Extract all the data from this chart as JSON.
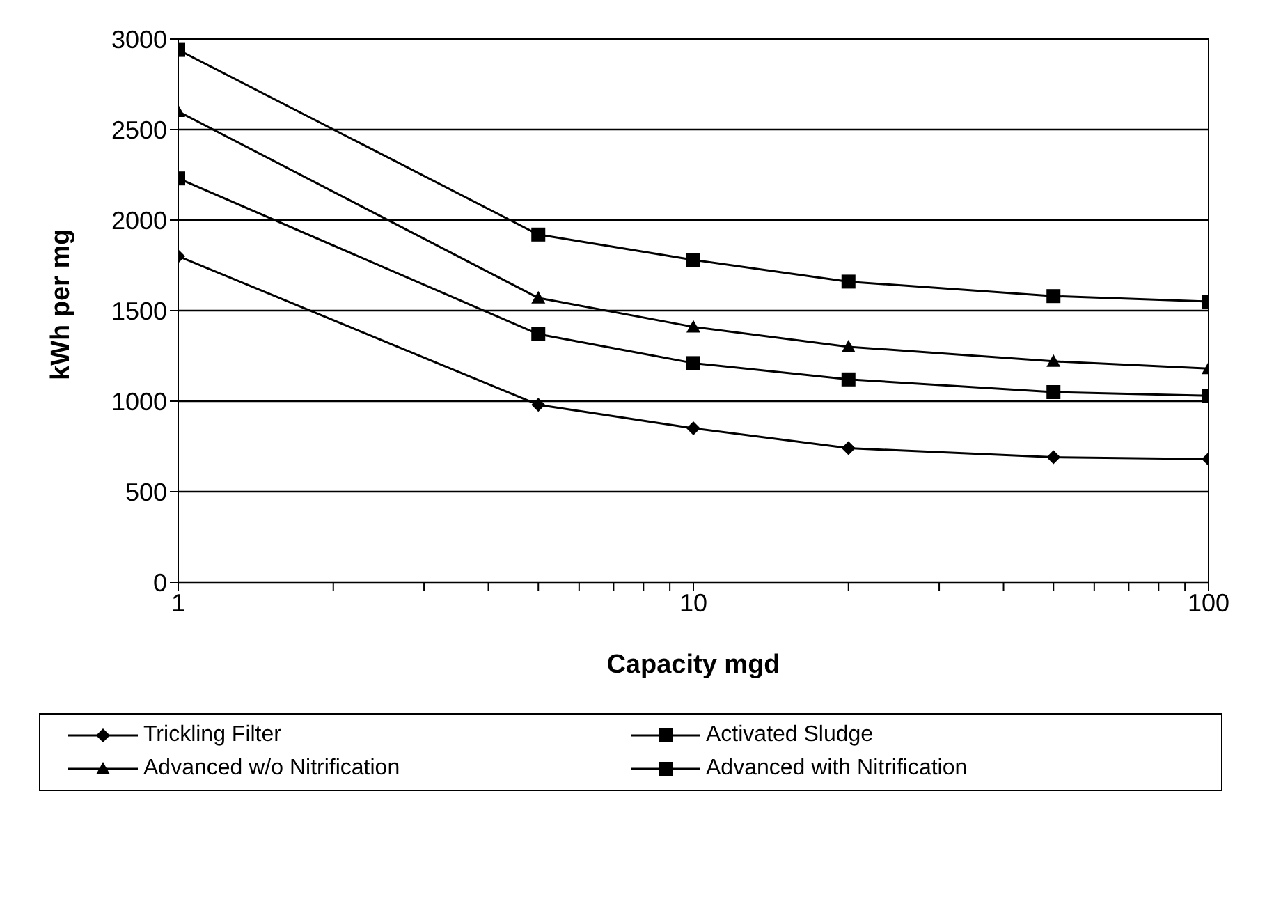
{
  "chart_data": {
    "type": "line",
    "xlabel": "Capacity mgd",
    "ylabel": "kWh per mg",
    "log": "x",
    "x": [
      1,
      5,
      10,
      20,
      50,
      100
    ],
    "series": [
      {
        "name": "Trickling Filter",
        "color": "#000000",
        "marker": "diamond",
        "values": [
          1800,
          980,
          850,
          740,
          690,
          680
        ]
      },
      {
        "name": "Activated Sludge",
        "color": "#000000",
        "marker": "square",
        "values": [
          2230,
          1370,
          1210,
          1120,
          1050,
          1030
        ]
      },
      {
        "name": "Advanced w/o Nitrification",
        "color": "#000000",
        "marker": "triangle",
        "values": [
          2600,
          1570,
          1410,
          1300,
          1220,
          1180
        ]
      },
      {
        "name": "Advanced with Nitrification",
        "color": "#000000",
        "marker": "square",
        "values": [
          2940,
          1920,
          1780,
          1660,
          1580,
          1550
        ]
      }
    ],
    "xlim": [
      1,
      100
    ],
    "xticks": [
      1,
      {
        "value": 2,
        "label": null
      },
      {
        "value": 3,
        "label": null
      },
      {
        "value": 4,
        "label": null
      },
      {
        "value": 5,
        "label": null
      },
      {
        "value": 6,
        "label": null
      },
      {
        "value": 7,
        "label": null
      },
      {
        "value": 8,
        "label": null
      },
      {
        "value": 9,
        "label": null
      },
      10,
      {
        "value": 20,
        "label": null
      },
      {
        "value": 30,
        "label": null
      },
      {
        "value": 40,
        "label": null
      },
      {
        "value": 50,
        "label": null
      },
      {
        "value": 60,
        "label": null
      },
      {
        "value": 70,
        "label": null
      },
      {
        "value": 80,
        "label": null
      },
      {
        "value": 90,
        "label": null
      },
      100
    ],
    "ylim": [
      0,
      3000
    ],
    "yticks": [
      0,
      500,
      1000,
      1500,
      2000,
      2500,
      3000
    ],
    "grid": "y",
    "legend": "bottom",
    "line_style": "solid"
  }
}
